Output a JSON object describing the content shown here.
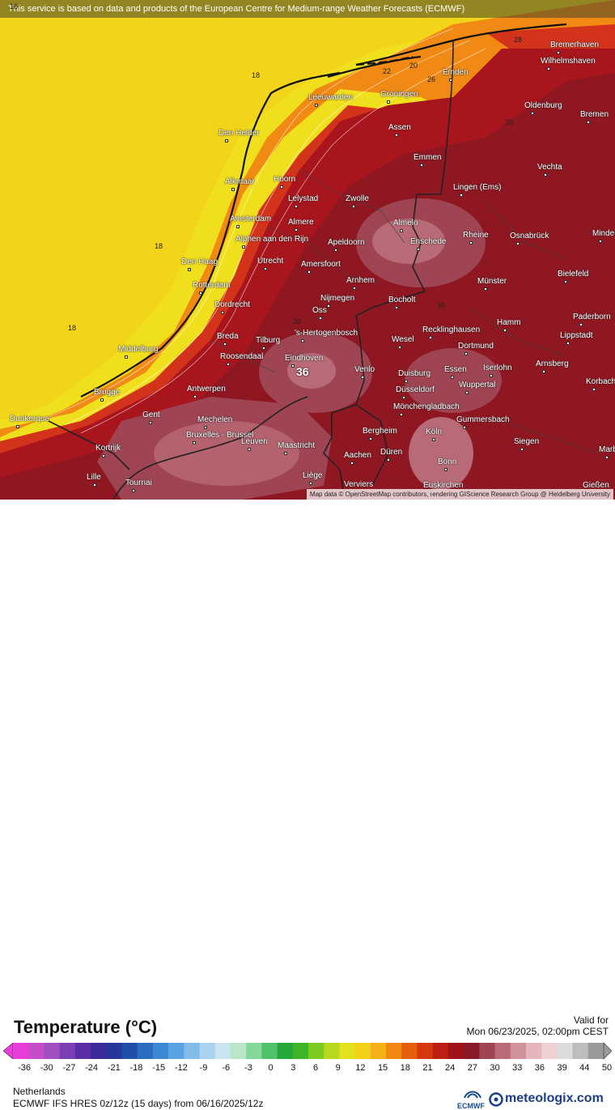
{
  "header": {
    "banner": "This service is based on data and products of the European Centre for Medium-range Weather Forecasts (ECMWF)",
    "attribution": "Map data © OpenStreetMap contributors, rendering GIScience Research Group @ Heidelberg University"
  },
  "map": {
    "cities": [
      {
        "name": "Bremerhaven"
      },
      {
        "name": "Wilhelmshaven"
      },
      {
        "name": "Emden"
      },
      {
        "name": "Leeuwarden"
      },
      {
        "name": "Groningen"
      },
      {
        "name": "Oldenburg"
      },
      {
        "name": "Bremen"
      },
      {
        "name": "Assen"
      },
      {
        "name": "Den Helder"
      },
      {
        "name": "Emmen"
      },
      {
        "name": "Vechta"
      },
      {
        "name": "Alkmaar"
      },
      {
        "name": "Hoorn"
      },
      {
        "name": "Lingen (Ems)"
      },
      {
        "name": "Lelystad"
      },
      {
        "name": "Zwolle"
      },
      {
        "name": "Amsterdam"
      },
      {
        "name": "Almere"
      },
      {
        "name": "Almelo"
      },
      {
        "name": "Apeldoorn"
      },
      {
        "name": "Alphen aan den Rijn"
      },
      {
        "name": "Enschede"
      },
      {
        "name": "Rheine"
      },
      {
        "name": "Osnabrück"
      },
      {
        "name": "Minden"
      },
      {
        "name": "Den Haag"
      },
      {
        "name": "Utrecht"
      },
      {
        "name": "Amersfoort"
      },
      {
        "name": "Bielefeld"
      },
      {
        "name": "Rotterdam"
      },
      {
        "name": "Arnhem"
      },
      {
        "name": "Münster"
      },
      {
        "name": "Dordrecht"
      },
      {
        "name": "Nijmegen"
      },
      {
        "name": "Oss"
      },
      {
        "name": "Bocholt"
      },
      {
        "name": "Paderborn"
      },
      {
        "name": "Hamm"
      },
      {
        "name": "Lippstadt"
      },
      {
        "name": "Breda"
      },
      {
        "name": "Tilburg"
      },
      {
        "name": "'s-Hertogenbosch"
      },
      {
        "name": "Wesel"
      },
      {
        "name": "Recklinghausen"
      },
      {
        "name": "Middelburg"
      },
      {
        "name": "Roosendaal"
      },
      {
        "name": "Eindhoven"
      },
      {
        "name": "Dortmund"
      },
      {
        "name": "Arnsberg"
      },
      {
        "name": "Venlo"
      },
      {
        "name": "Duisburg"
      },
      {
        "name": "Essen"
      },
      {
        "name": "Iserlohn"
      },
      {
        "name": "Korbach"
      },
      {
        "name": "Brugge"
      },
      {
        "name": "Antwerpen"
      },
      {
        "name": "Wuppertal"
      },
      {
        "name": "Düsseldorf"
      },
      {
        "name": "Mönchengladbach"
      },
      {
        "name": "Dunkerque"
      },
      {
        "name": "Gent"
      },
      {
        "name": "Mechelen"
      },
      {
        "name": "Gummersbach"
      },
      {
        "name": "Bergheim"
      },
      {
        "name": "Bruxelles - Brussel"
      },
      {
        "name": "Köln"
      },
      {
        "name": "Kortrijk"
      },
      {
        "name": "Leuven"
      },
      {
        "name": "Maastricht"
      },
      {
        "name": "Siegen"
      },
      {
        "name": "Düren"
      },
      {
        "name": "Aachen"
      },
      {
        "name": "Marburg"
      },
      {
        "name": "Bonn"
      },
      {
        "name": "Lille"
      },
      {
        "name": "Liège"
      },
      {
        "name": "Tournai"
      },
      {
        "name": "Verviers"
      },
      {
        "name": "Euskirchen"
      },
      {
        "name": "Gießen"
      }
    ],
    "isotherm_labels": [
      "16",
      "18",
      "18",
      "18",
      "28",
      "22",
      "20",
      "26",
      "30",
      "30",
      "30"
    ],
    "max_label": "36"
  },
  "legend": {
    "title": "Temperature (°C)",
    "valid_label": "Valid for",
    "valid_value": "Mon 06/23/2025, 02:00pm CEST",
    "ticks": [
      "-36",
      "-30",
      "-27",
      "-24",
      "-21",
      "-18",
      "-15",
      "-12",
      "-9",
      "-6",
      "-3",
      "0",
      "3",
      "6",
      "9",
      "12",
      "15",
      "18",
      "21",
      "24",
      "27",
      "30",
      "33",
      "36",
      "39",
      "44",
      "50"
    ],
    "region": "Netherlands",
    "model": "ECMWF IFS HRES 0z/12z (15 days) from 06/16/2025/12z",
    "ecmwf_logo": "ECMWF",
    "brand": "meteologix.com"
  },
  "colorscale": [
    "#e83cd8",
    "#c64cc9",
    "#a050c0",
    "#7a3fb3",
    "#5a2ea6",
    "#3a2a9c",
    "#28359c",
    "#1f4fa8",
    "#2a6cc0",
    "#3d88d3",
    "#5aa3e2",
    "#82bde8",
    "#a9d3ee",
    "#c9e6f0",
    "#b8e6c6",
    "#84d79a",
    "#4fc267",
    "#24a838",
    "#3fb52a",
    "#7dca1f",
    "#b7d81c",
    "#e2e11b",
    "#f4d01b",
    "#f5b016",
    "#f08812",
    "#e65f0f",
    "#d5380f",
    "#bd1e12",
    "#a0121a",
    "#8a1a2a",
    "#9e4452",
    "#b86a76",
    "#cf919a",
    "#e4b5ba",
    "#f0d1d3",
    "#dcdcdc",
    "#bdbdbd",
    "#9a9a9a"
  ]
}
